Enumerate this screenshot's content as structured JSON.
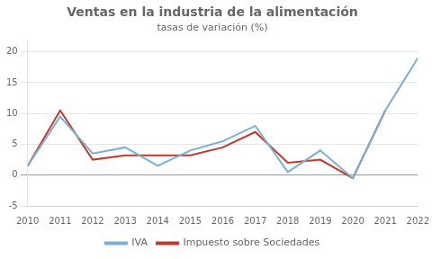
{
  "chart_data": {
    "type": "line",
    "title": "Ventas en la industria de la alimentación",
    "subtitle": "tasas de variación (%)",
    "x": [
      2010,
      2011,
      2012,
      2013,
      2014,
      2015,
      2016,
      2017,
      2018,
      2019,
      2020,
      2021,
      2022
    ],
    "series": [
      {
        "name": "IVA",
        "color": "#7ab0d4",
        "values": [
          1.5,
          9.5,
          3.5,
          4.5,
          1.5,
          4.0,
          5.5,
          8.0,
          0.5,
          4.0,
          -0.5,
          10.5,
          19.0
        ]
      },
      {
        "name": "Impuesto sobre Sociedades",
        "color": "#c0392b",
        "values": [
          1.5,
          10.5,
          2.5,
          3.2,
          3.2,
          3.2,
          4.5,
          7.0,
          2.0,
          2.5,
          -0.5,
          10.5,
          null
        ]
      }
    ],
    "xlim": [
      2010,
      2022
    ],
    "xticks": [
      2010,
      2011,
      2012,
      2013,
      2014,
      2015,
      2016,
      2017,
      2018,
      2019,
      2020,
      2021,
      2022
    ],
    "ylim": [
      -5,
      22
    ],
    "yticks": [
      -5,
      0,
      5,
      10,
      15,
      20
    ],
    "grid": "y",
    "legend": "bottom"
  }
}
